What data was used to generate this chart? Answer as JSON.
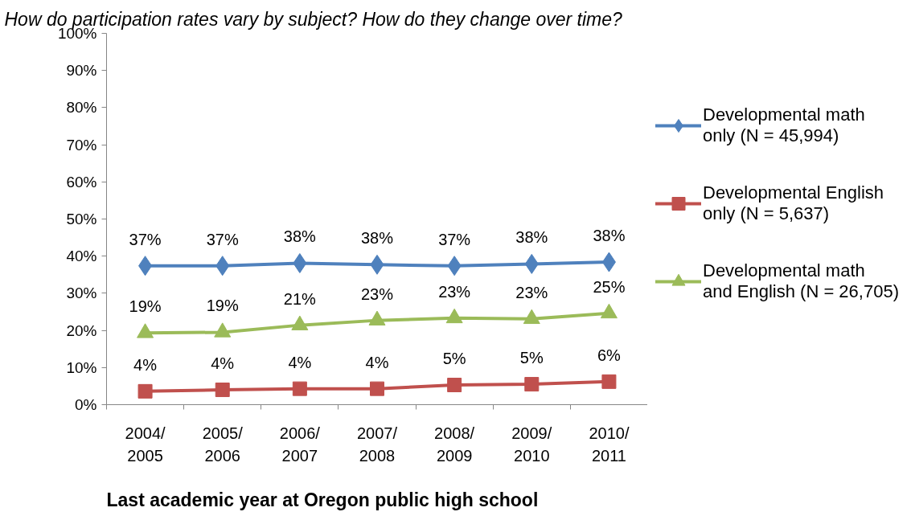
{
  "chart_data": {
    "type": "line",
    "title": "How do participation rates vary by subject? How do they change over time?",
    "xlabel": "Last academic year at Oregon public high school",
    "categories": [
      "2004/2005",
      "2005/2006",
      "2006/2007",
      "2007/2008",
      "2008/2009",
      "2009/2010",
      "2010/2011"
    ],
    "series": [
      {
        "name": "Developmental math only (N = 45,994)",
        "color": "#4f81bd",
        "marker": "diamond",
        "values": [
          37.4,
          37.4,
          38.1,
          37.7,
          37.4,
          37.9,
          38.4
        ],
        "value_labels": [
          "37%",
          "37%",
          "38%",
          "38%",
          "37%",
          "38%",
          "38%"
        ]
      },
      {
        "name": "Developmental English only (N = 5,637)",
        "color": "#c0504d",
        "marker": "square",
        "values": [
          3.6,
          4.0,
          4.3,
          4.3,
          5.3,
          5.5,
          6.2
        ],
        "value_labels": [
          "4%",
          "4%",
          "4%",
          "4%",
          "5%",
          "5%",
          "6%"
        ]
      },
      {
        "name": "Developmental math and English (N = 26,705)",
        "color": "#9bbb59",
        "marker": "triangle",
        "values": [
          19.3,
          19.5,
          21.4,
          22.7,
          23.3,
          23.1,
          24.6
        ],
        "value_labels": [
          "19%",
          "19%",
          "21%",
          "23%",
          "23%",
          "23%",
          "25%"
        ]
      }
    ],
    "ylim": [
      0,
      100
    ],
    "yticks": [
      {
        "value": 0,
        "label": "0%"
      },
      {
        "value": 10,
        "label": "10%"
      },
      {
        "value": 20,
        "label": "20%"
      },
      {
        "value": 30,
        "label": "30%"
      },
      {
        "value": 40,
        "label": "40%"
      },
      {
        "value": 50,
        "label": "50%"
      },
      {
        "value": 60,
        "label": "60%"
      },
      {
        "value": 70,
        "label": "70%"
      },
      {
        "value": 80,
        "label": "80%"
      },
      {
        "value": 90,
        "label": "90%"
      },
      {
        "value": 100,
        "label": "100%"
      }
    ],
    "grid": false,
    "legend": "right",
    "line_style": "solid"
  }
}
